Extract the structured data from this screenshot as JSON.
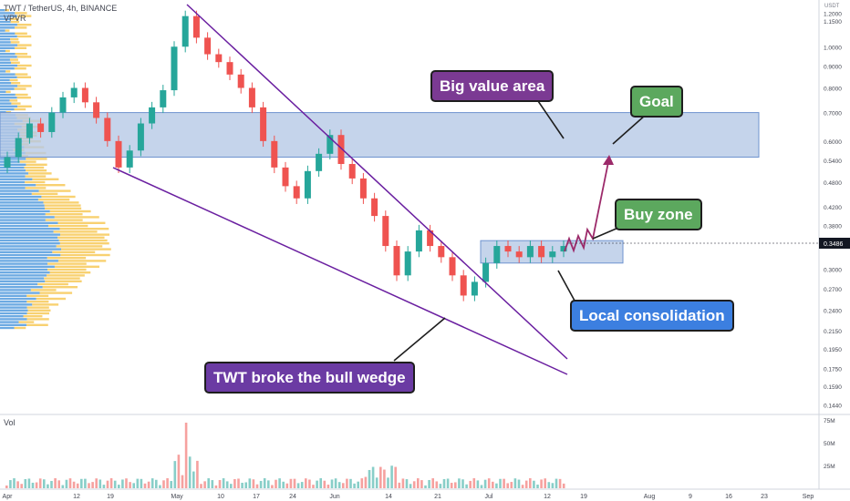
{
  "header": {
    "symbol_line": "TWT / TetherUS, 4h, BINANCE",
    "indicator": "VPVR",
    "volume_label": "Vol"
  },
  "price_axis": {
    "unit": "USDT",
    "ticks": [
      "1.2000",
      "1.1500",
      "1.0000",
      "0.9000",
      "0.8000",
      "0.7000",
      "0.6000",
      "0.5400",
      "0.4800",
      "0.4200",
      "0.3800",
      "0.3400",
      "0.3000",
      "0.2700",
      "0.2400",
      "0.2150",
      "0.1950",
      "0.1750",
      "0.1590",
      "0.1440"
    ],
    "last_price": "0.3486"
  },
  "volume_axis": {
    "ticks": [
      "75M",
      "50M",
      "25M"
    ]
  },
  "time_axis": {
    "labels": [
      "Apr",
      "12",
      "19",
      "May",
      "10",
      "17",
      "24",
      "Jun",
      "14",
      "21",
      "Jul",
      "12",
      "19",
      "Aug",
      "9",
      "16",
      "23",
      "Sep"
    ]
  },
  "annotations": {
    "big_value_area": "Big value area",
    "goal": "Goal",
    "buy_zone": "Buy zone",
    "local_consolidation": "Local consolidation",
    "wedge_break": "TWT broke the bull wedge"
  },
  "colors": {
    "up": "#26a69a",
    "down": "#ef5350",
    "zone_fill": "#b7c9e6",
    "zone_border": "#6f93cf",
    "wedge_line": "#6a1fa0",
    "projection": "#9c2a6a",
    "vp_blue": "#2f86d6",
    "vp_yellow": "#f5c242"
  },
  "chart_data": {
    "type": "candlestick",
    "series": [
      {
        "values": [
          [
            0.52,
            0.55
          ],
          [
            0.55,
            0.61
          ],
          [
            0.61,
            0.66
          ],
          [
            0.66,
            0.63
          ],
          [
            0.63,
            0.7
          ],
          [
            0.7,
            0.76
          ],
          [
            0.76,
            0.8
          ],
          [
            0.8,
            0.74
          ],
          [
            0.74,
            0.68
          ],
          [
            0.68,
            0.6
          ],
          [
            0.6,
            0.52
          ],
          [
            0.52,
            0.57
          ],
          [
            0.57,
            0.66
          ],
          [
            0.66,
            0.72
          ],
          [
            0.72,
            0.79
          ],
          [
            0.79,
            1.0
          ],
          [
            1.0,
            1.18
          ],
          [
            1.18,
            1.05
          ],
          [
            1.05,
            0.96
          ],
          [
            0.96,
            0.92
          ],
          [
            0.92,
            0.86
          ],
          [
            0.86,
            0.8
          ],
          [
            0.8,
            0.72
          ],
          [
            0.72,
            0.6
          ],
          [
            0.6,
            0.52
          ],
          [
            0.52,
            0.47
          ],
          [
            0.47,
            0.44
          ],
          [
            0.44,
            0.51
          ],
          [
            0.51,
            0.56
          ],
          [
            0.56,
            0.62
          ],
          [
            0.62,
            0.53
          ],
          [
            0.53,
            0.49
          ],
          [
            0.49,
            0.44
          ],
          [
            0.44,
            0.4
          ],
          [
            0.4,
            0.34
          ],
          [
            0.34,
            0.29
          ],
          [
            0.29,
            0.33
          ],
          [
            0.33,
            0.37
          ],
          [
            0.37,
            0.34
          ],
          [
            0.34,
            0.32
          ],
          [
            0.32,
            0.29
          ],
          [
            0.29,
            0.26
          ],
          [
            0.26,
            0.28
          ],
          [
            0.28,
            0.31
          ],
          [
            0.31,
            0.34
          ],
          [
            0.34,
            0.33
          ],
          [
            0.33,
            0.32
          ],
          [
            0.32,
            0.34
          ],
          [
            0.34,
            0.32
          ],
          [
            0.32,
            0.33
          ],
          [
            0.33,
            0.34
          ]
        ]
      }
    ],
    "price_scale": "log",
    "ylim": [
      0.14,
      1.25
    ],
    "zones": [
      {
        "label": "Big value area",
        "y": [
          0.55,
          0.7
        ]
      },
      {
        "label": "Buy zone",
        "y": [
          0.31,
          0.35
        ]
      }
    ],
    "volume_ylim": [
      0,
      80
    ]
  }
}
